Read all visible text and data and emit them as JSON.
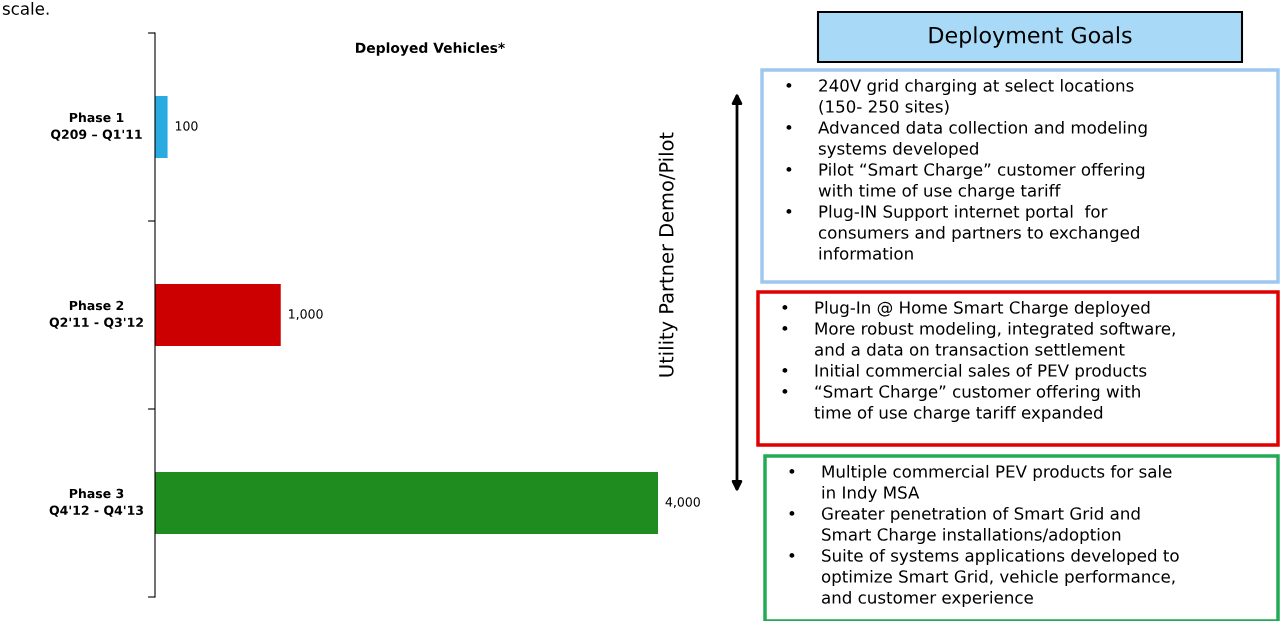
{
  "chart_data": [
    {
      "type": "bar",
      "orientation": "horizontal",
      "title": "Deployed Vehicles*",
      "categories": [
        "Phase 1\nQ209 – Q1'11",
        "Phase 2\nQ2'11 - Q3'12",
        "Phase 3\nQ4'12 - Q4'13"
      ],
      "values": [
        100,
        1000,
        4000
      ],
      "colors": [
        "#29abe2",
        "#cc0000",
        "#1e8c1e"
      ],
      "value_labels": [
        "100",
        "1,000",
        "4,000"
      ],
      "tick_labels": "y",
      "grid": false,
      "legend": false,
      "annotations": [
        "scale."
      ]
    },
    {
      "type": "other",
      "title": "Deployment Goals",
      "colors": [
        "#9dc8f0",
        "#e00000",
        "#22aa55"
      ],
      "annotations": [
        "Utility Partner Demo/Pilot",
        "• 240V grid charging at select locations\n(150- 250 sites)\n• Advanced data collection and modeling\nsystems developed\n• Pilot “Smart Charge” customer offering\nwith time of use charge tariff\n• Plug-IN Support internet portal  for\nconsumers and partners to exchanged\ninformation",
        "• Plug-In @ Home Smart Charge deployed\n• More robust modeling, integrated software,\nand a data on transaction settlement\n• Initial commercial sales of PEV products\n• “Smart Charge” customer offering with\ntime of use charge tariff expanded",
        "• Multiple commercial PEV products for sale\nin Indy MSA\n• Greater penetration of Smart Grid and\nSmart Charge installations/adoption\n• Suite of systems applications developed to\noptimize Smart Grid, vehicle performance,\nand customer experience"
      ]
    }
  ]
}
